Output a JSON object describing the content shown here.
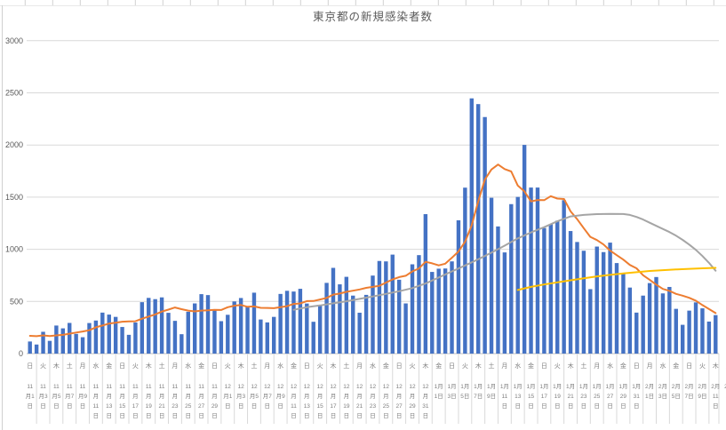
{
  "window": {
    "background": "#ffffff"
  },
  "chart_data": {
    "type": "bar",
    "title": "東京都の新規感染者数",
    "xlabel": "",
    "ylabel": "",
    "ylim": [
      0,
      3000
    ],
    "yticks": [
      0,
      500,
      1000,
      1500,
      2000,
      2500,
      3000
    ],
    "grid": true,
    "legend_position": "none",
    "colors": {
      "bar": "#4472C4",
      "orange_line": "#ED7D31",
      "gray_line": "#A5A5A5",
      "yellow_line": "#FFC000",
      "grid": "#d9d9d9",
      "axis": "#bfbfbf",
      "ytick_text": "#595959",
      "xtick_text": "#7f7f7f",
      "title_text": "#595959",
      "sheet_line": "#d0d0d0"
    },
    "bar_series": {
      "name": "daily-new-cases",
      "values": [
        116,
        87,
        209,
        122,
        269,
        242,
        294,
        189,
        157,
        293,
        317,
        393,
        374,
        352,
        255,
        180,
        298,
        493,
        534,
        522,
        539,
        391,
        314,
        186,
        401,
        481,
        570,
        561,
        418,
        311,
        372,
        500,
        533,
        449,
        584,
        327,
        299,
        352,
        572,
        602,
        595,
        621,
        480,
        305,
        460,
        678,
        822,
        664,
        736,
        556,
        392,
        563,
        748,
        888,
        884,
        949,
        708,
        481,
        856,
        944,
        1337,
        783,
        814,
        816,
        884,
        1278,
        1591,
        2447,
        2392,
        2268,
        1494,
        1219,
        970,
        1433,
        1502,
        2001,
        1592,
        1592,
        1204,
        1240,
        1274,
        1471,
        1175,
        1070,
        986,
        618,
        1026,
        973,
        1064,
        868,
        769,
        633,
        393,
        556,
        676,
        734,
        577,
        639,
        429,
        276,
        412,
        491,
        434,
        307,
        369
      ]
    },
    "line_series": [
      {
        "name": "orange-line",
        "color": "#ED7D31",
        "values": [
          170,
          167,
          175,
          168,
          175,
          180,
          191,
          202,
          212,
          224,
          252,
          269,
          288,
          296,
          306,
          309,
          310,
          335,
          355,
          376,
          403,
          422,
          442,
          426,
          412,
          405,
          412,
          415,
          419,
          418,
          445,
          459,
          466,
          449,
          452,
          439,
          438,
          435,
          445,
          455,
          476,
          481,
          503,
          504,
          519,
          534,
          566,
          576,
          592,
          603,
          615,
          630,
          640,
          650,
          681,
          711,
          733,
          746,
          788,
          816,
          880,
          865,
          846,
          862,
          919,
          979,
          1072,
          1230,
          1460,
          1668,
          1765,
          1813,
          1769,
          1746,
          1611,
          1555,
          1459,
          1473,
          1471,
          1509,
          1486,
          1482,
          1364,
          1289,
          1203,
          1119,
          1089,
          1046,
          987,
          944,
          901,
          850,
          818,
          751,
          708,
          661,
          620,
          601,
          572,
          555,
          535,
          508,
          465,
          427,
          388
        ]
      },
      {
        "name": "gray-line",
        "color": "#A5A5A5",
        "points": [
          [
            41,
            420
          ],
          [
            43,
            445
          ],
          [
            45,
            462
          ],
          [
            47,
            482
          ],
          [
            49,
            502
          ],
          [
            51,
            525
          ],
          [
            53,
            548
          ],
          [
            55,
            572
          ],
          [
            57,
            598
          ],
          [
            59,
            628
          ],
          [
            61,
            672
          ],
          [
            63,
            730
          ],
          [
            65,
            788
          ],
          [
            67,
            845
          ],
          [
            69,
            905
          ],
          [
            71,
            968
          ],
          [
            73,
            1035
          ],
          [
            75,
            1105
          ],
          [
            77,
            1162
          ],
          [
            79,
            1212
          ],
          [
            81,
            1268
          ],
          [
            83,
            1315
          ],
          [
            85,
            1330
          ],
          [
            87,
            1337
          ],
          [
            89,
            1340
          ],
          [
            91,
            1338
          ],
          [
            92,
            1330
          ],
          [
            93,
            1310
          ],
          [
            94,
            1285
          ],
          [
            95,
            1255
          ],
          [
            96,
            1225
          ],
          [
            97,
            1195
          ],
          [
            98,
            1165
          ],
          [
            99,
            1130
          ],
          [
            100,
            1090
          ],
          [
            101,
            1045
          ],
          [
            102,
            995
          ],
          [
            103,
            935
          ],
          [
            104,
            870
          ],
          [
            105,
            795
          ]
        ]
      },
      {
        "name": "yellow-line",
        "color": "#FFC000",
        "points": [
          [
            75,
            610
          ],
          [
            77,
            640
          ],
          [
            79,
            663
          ],
          [
            81,
            683
          ],
          [
            83,
            703
          ],
          [
            85,
            722
          ],
          [
            87,
            740
          ],
          [
            89,
            755
          ],
          [
            91,
            768
          ],
          [
            93,
            780
          ],
          [
            95,
            792
          ],
          [
            97,
            800
          ],
          [
            99,
            807
          ],
          [
            101,
            813
          ],
          [
            103,
            818
          ],
          [
            105,
            822
          ]
        ]
      }
    ],
    "axis_labels": [
      {
        "m": 11,
        "d": 1,
        "w": "日"
      },
      {
        "m": 11,
        "d": 3,
        "w": "火"
      },
      {
        "m": 11,
        "d": 5,
        "w": "木"
      },
      {
        "m": 11,
        "d": 7,
        "w": "土"
      },
      {
        "m": 11,
        "d": 9,
        "w": "月"
      },
      {
        "m": 11,
        "d": 11,
        "w": "水"
      },
      {
        "m": 11,
        "d": 13,
        "w": "金"
      },
      {
        "m": 11,
        "d": 15,
        "w": "日"
      },
      {
        "m": 11,
        "d": 17,
        "w": "火"
      },
      {
        "m": 11,
        "d": 19,
        "w": "木"
      },
      {
        "m": 11,
        "d": 21,
        "w": "土"
      },
      {
        "m": 11,
        "d": 23,
        "w": "月"
      },
      {
        "m": 11,
        "d": 25,
        "w": "水"
      },
      {
        "m": 11,
        "d": 27,
        "w": "金"
      },
      {
        "m": 11,
        "d": 29,
        "w": "日"
      },
      {
        "m": 12,
        "d": 1,
        "w": "火"
      },
      {
        "m": 12,
        "d": 3,
        "w": "木"
      },
      {
        "m": 12,
        "d": 5,
        "w": "土"
      },
      {
        "m": 12,
        "d": 7,
        "w": "月"
      },
      {
        "m": 12,
        "d": 9,
        "w": "水"
      },
      {
        "m": 12,
        "d": 11,
        "w": "金"
      },
      {
        "m": 12,
        "d": 13,
        "w": "日"
      },
      {
        "m": 12,
        "d": 15,
        "w": "火"
      },
      {
        "m": 12,
        "d": 17,
        "w": "木"
      },
      {
        "m": 12,
        "d": 19,
        "w": "土"
      },
      {
        "m": 12,
        "d": 21,
        "w": "月"
      },
      {
        "m": 12,
        "d": 23,
        "w": "水"
      },
      {
        "m": 12,
        "d": 25,
        "w": "金"
      },
      {
        "m": 12,
        "d": 27,
        "w": "日"
      },
      {
        "m": 12,
        "d": 29,
        "w": "火"
      },
      {
        "m": 12,
        "d": 31,
        "w": "木"
      },
      {
        "m": 1,
        "d": 1,
        "w": "金"
      },
      {
        "m": 1,
        "d": 3,
        "w": "日"
      },
      {
        "m": 1,
        "d": 5,
        "w": "火"
      },
      {
        "m": 1,
        "d": 7,
        "w": "木"
      },
      {
        "m": 1,
        "d": 9,
        "w": "土"
      },
      {
        "m": 1,
        "d": 11,
        "w": "月"
      },
      {
        "m": 1,
        "d": 13,
        "w": "水"
      },
      {
        "m": 1,
        "d": 15,
        "w": "金"
      },
      {
        "m": 1,
        "d": 17,
        "w": "日"
      },
      {
        "m": 1,
        "d": 19,
        "w": "火"
      },
      {
        "m": 1,
        "d": 21,
        "w": "木"
      },
      {
        "m": 1,
        "d": 23,
        "w": "土"
      },
      {
        "m": 1,
        "d": 25,
        "w": "月"
      },
      {
        "m": 1,
        "d": 27,
        "w": "水"
      },
      {
        "m": 1,
        "d": 29,
        "w": "金"
      },
      {
        "m": 1,
        "d": 31,
        "w": "日"
      },
      {
        "m": 2,
        "d": 1,
        "w": "月"
      },
      {
        "m": 2,
        "d": 3,
        "w": "水"
      },
      {
        "m": 2,
        "d": 5,
        "w": "金"
      },
      {
        "m": 2,
        "d": 7,
        "w": "日"
      },
      {
        "m": 2,
        "d": 9,
        "w": "火"
      },
      {
        "m": 2,
        "d": 11,
        "w": "木"
      },
      {
        "m": 2,
        "d": 13,
        "w": "土"
      }
    ]
  }
}
